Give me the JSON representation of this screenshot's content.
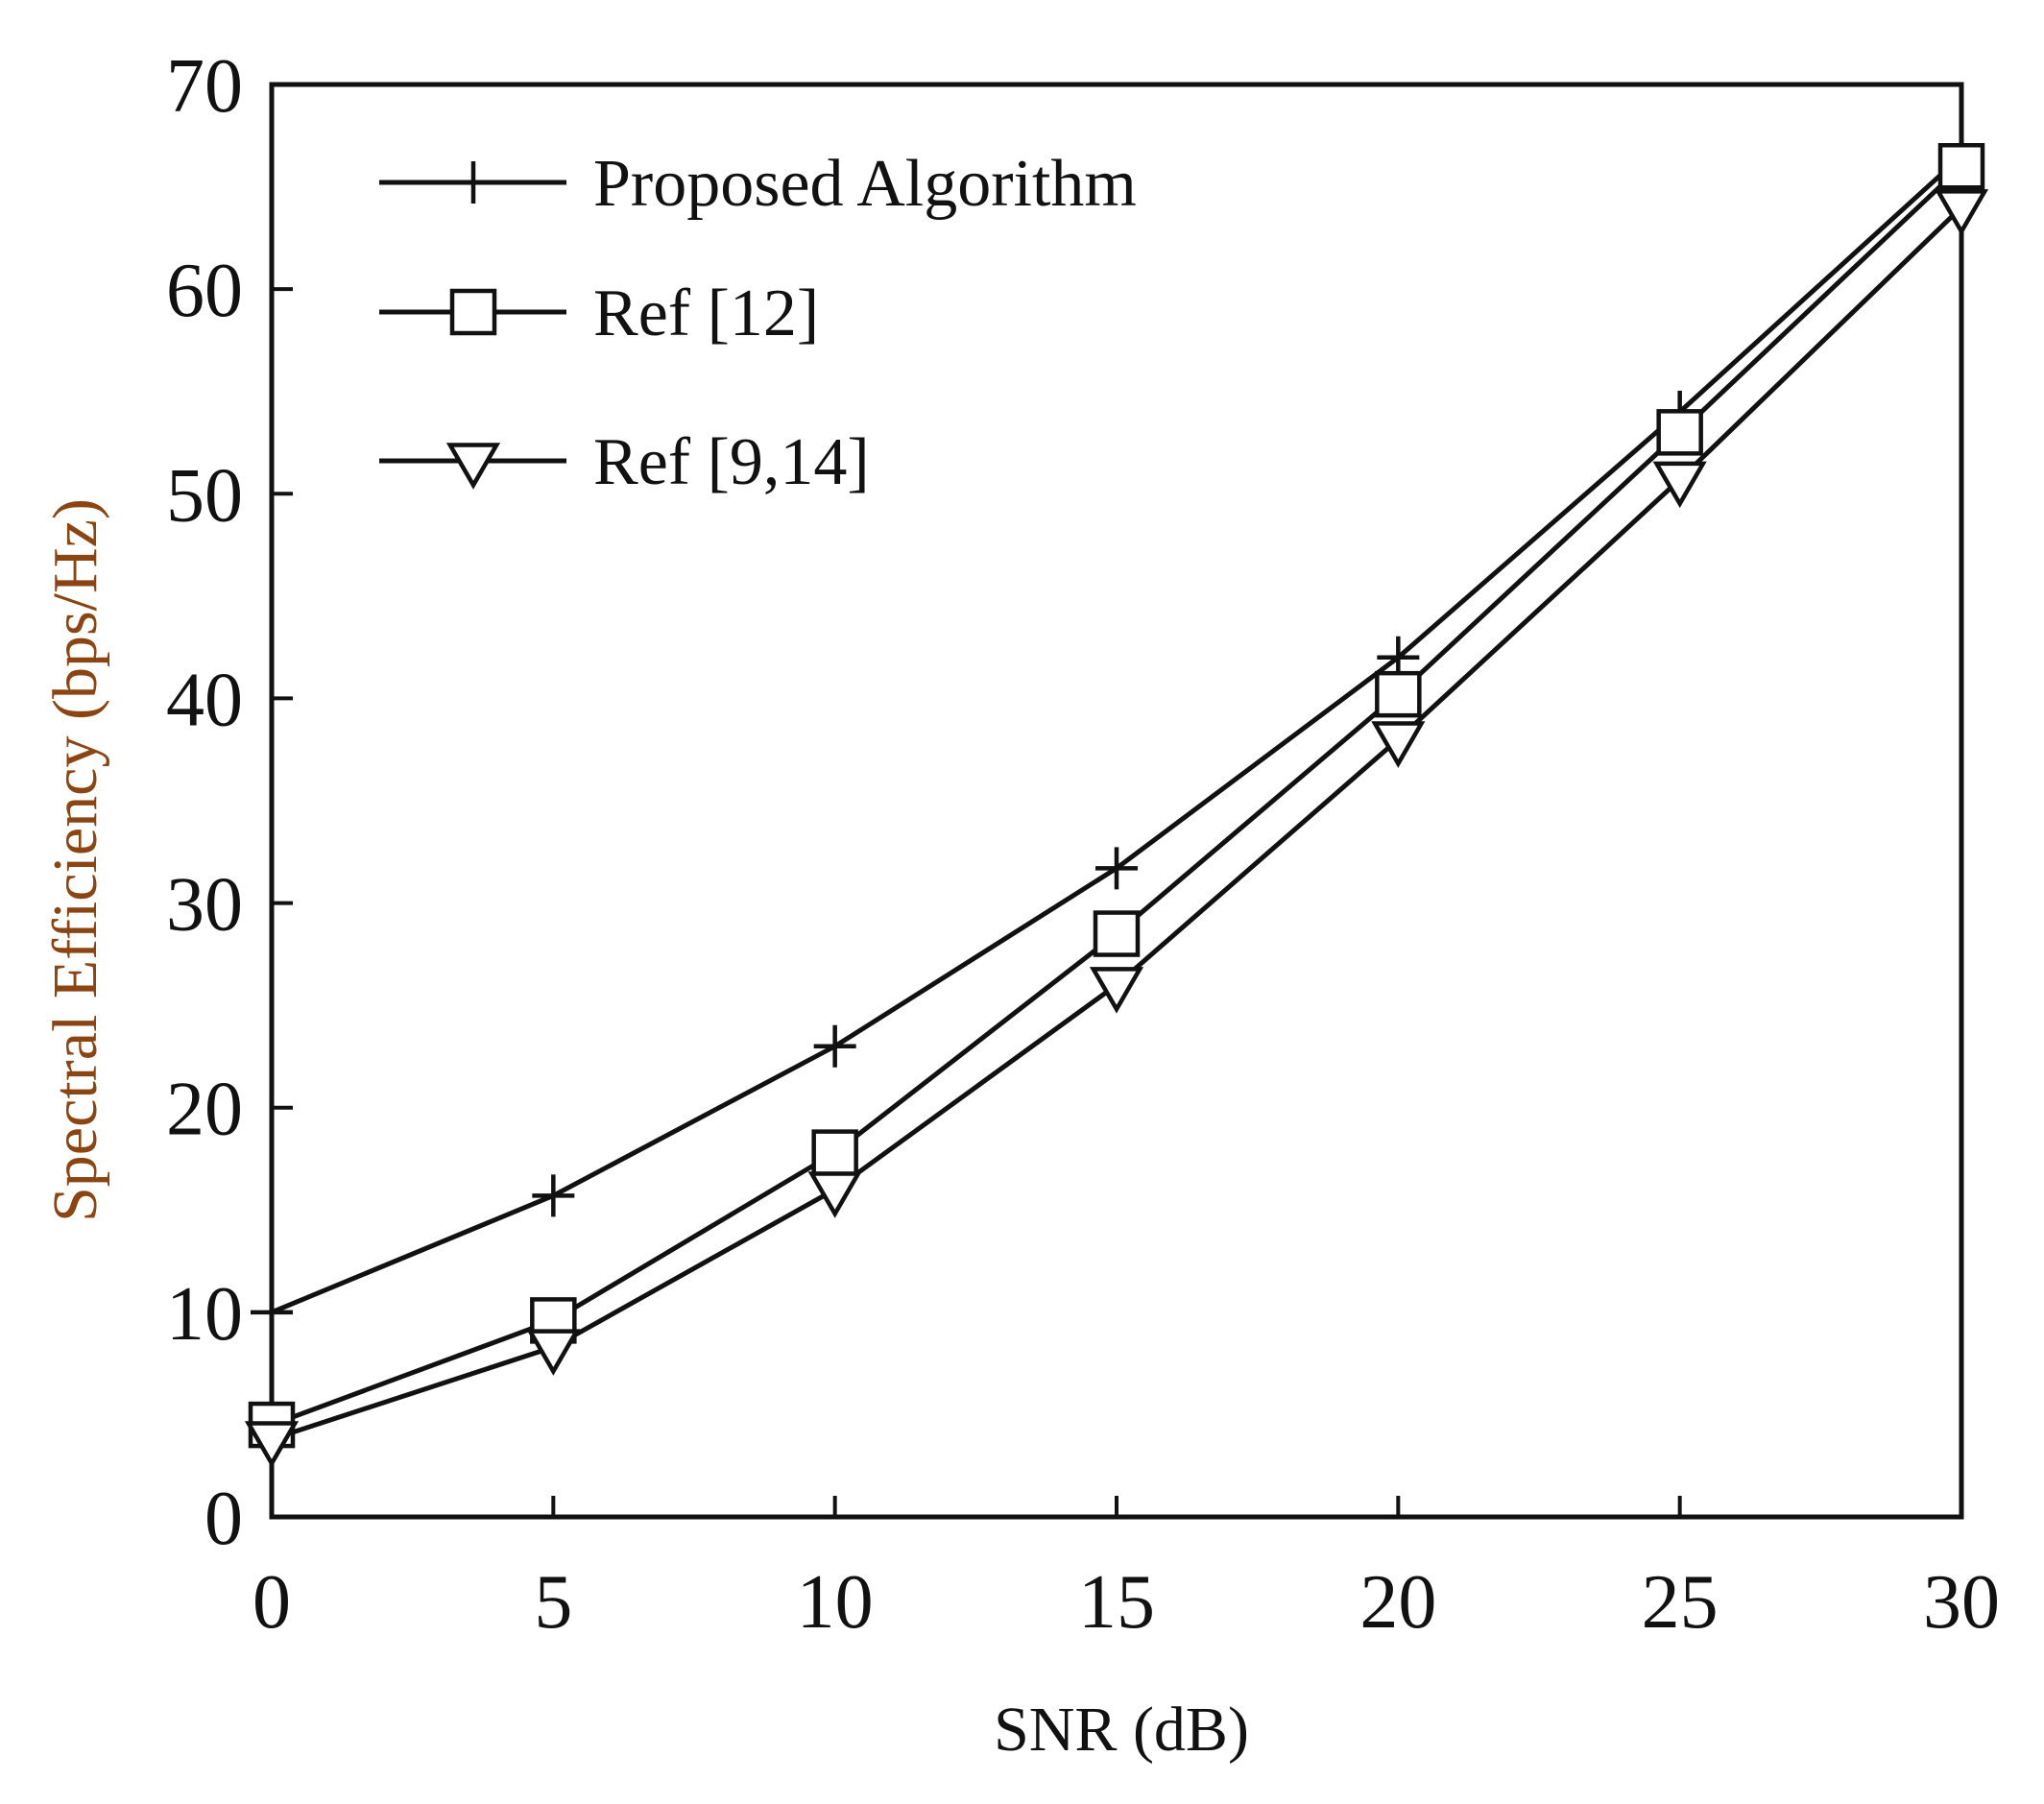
{
  "colors": {
    "ink": "#111111",
    "ylabel_color": "#8b4513",
    "background": "#ffffff"
  },
  "chart_data": {
    "type": "line",
    "title": "",
    "xlabel": "SNR (dB)",
    "ylabel": "Spectral Efficiency (bps/Hz)",
    "xlim": [
      0,
      30
    ],
    "ylim": [
      0,
      70
    ],
    "xticks": [
      0,
      5,
      10,
      15,
      20,
      25,
      30
    ],
    "yticks": [
      0,
      10,
      20,
      30,
      40,
      50,
      60,
      70
    ],
    "grid": false,
    "legend_position": "top-left",
    "x": [
      0,
      5,
      10,
      15,
      20,
      25,
      30
    ],
    "series": [
      {
        "name": "Proposed Algorithm",
        "marker": "plus",
        "values": [
          10,
          15.7,
          23,
          31.7,
          42,
          54,
          66.5
        ]
      },
      {
        "name": "Ref [12]",
        "marker": "square",
        "values": [
          4.5,
          9.6,
          17.8,
          28.5,
          40.2,
          53,
          66
        ]
      },
      {
        "name": "Ref [9,14]",
        "marker": "triangle-down",
        "values": [
          3.8,
          8.3,
          16,
          26,
          38,
          50.7,
          64
        ]
      }
    ]
  }
}
